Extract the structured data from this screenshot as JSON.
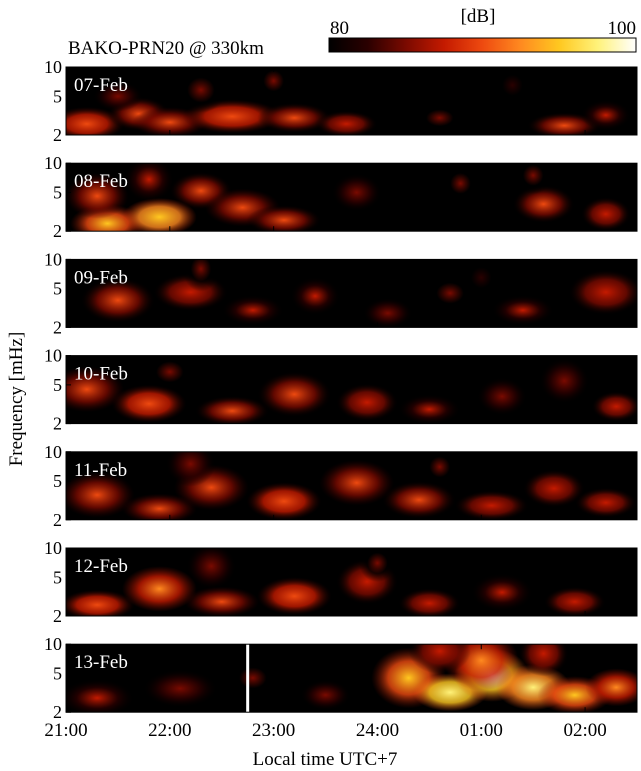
{
  "chart_data": {
    "type": "heatmap",
    "title": "BAKO-PRN20 @ 330km",
    "colorbar": {
      "unit": "[dB]",
      "min": 80,
      "max": 100,
      "min_label": "80",
      "max_label": "100",
      "colormap": [
        "#000000",
        "#2a0000",
        "#7a0a00",
        "#c41a00",
        "#ee4a10",
        "#ff8a20",
        "#ffc820",
        "#fff27a",
        "#ffffff"
      ]
    },
    "xlabel": "Local time UTC+7",
    "ylabel": "Frequency [mHz]",
    "x_ticks": [
      {
        "t": 21.0,
        "label": "21:00"
      },
      {
        "t": 22.0,
        "label": "22:00"
      },
      {
        "t": 23.0,
        "label": "23:00"
      },
      {
        "t": 24.0,
        "label": "24:00"
      },
      {
        "t": 25.0,
        "label": "01:00"
      },
      {
        "t": 26.0,
        "label": "02:00"
      }
    ],
    "xlim": [
      21.0,
      26.5
    ],
    "y_ticks": [
      {
        "f": 2,
        "label": "2"
      },
      {
        "f": 5,
        "label": "5"
      },
      {
        "f": 10,
        "label": "10"
      }
    ],
    "ylim": [
      2,
      10
    ],
    "panels": [
      {
        "label": "07-Feb",
        "blobs": [
          {
            "t": 21.2,
            "f": 2.6,
            "st": 0.3,
            "sf": 0.45,
            "v": 91
          },
          {
            "t": 21.7,
            "f": 3.3,
            "st": 0.25,
            "sf": 0.45,
            "v": 89
          },
          {
            "t": 22.0,
            "f": 2.7,
            "st": 0.3,
            "sf": 0.4,
            "v": 90
          },
          {
            "t": 22.6,
            "f": 3.1,
            "st": 0.4,
            "sf": 0.45,
            "v": 91
          },
          {
            "t": 23.2,
            "f": 3.0,
            "st": 0.3,
            "sf": 0.4,
            "v": 89
          },
          {
            "t": 23.7,
            "f": 2.6,
            "st": 0.25,
            "sf": 0.35,
            "v": 88
          },
          {
            "t": 22.3,
            "f": 5.8,
            "st": 0.2,
            "sf": 0.6,
            "v": 85
          },
          {
            "t": 23.0,
            "f": 7.2,
            "st": 0.15,
            "sf": 0.5,
            "v": 84
          },
          {
            "t": 25.8,
            "f": 2.5,
            "st": 0.3,
            "sf": 0.35,
            "v": 89
          },
          {
            "t": 26.2,
            "f": 3.2,
            "st": 0.2,
            "sf": 0.4,
            "v": 87
          },
          {
            "t": 25.3,
            "f": 6.5,
            "st": 0.15,
            "sf": 0.5,
            "v": 83
          },
          {
            "t": 24.6,
            "f": 3.0,
            "st": 0.2,
            "sf": 0.4,
            "v": 84
          },
          {
            "t": 21.5,
            "f": 5.0,
            "st": 0.2,
            "sf": 0.4,
            "v": 86
          }
        ]
      },
      {
        "label": "08-Feb",
        "blobs": [
          {
            "t": 21.4,
            "f": 2.4,
            "st": 0.3,
            "sf": 0.5,
            "v": 94
          },
          {
            "t": 21.9,
            "f": 2.8,
            "st": 0.3,
            "sf": 0.5,
            "v": 96
          },
          {
            "t": 21.3,
            "f": 4.6,
            "st": 0.25,
            "sf": 0.6,
            "v": 90
          },
          {
            "t": 22.3,
            "f": 5.2,
            "st": 0.25,
            "sf": 0.5,
            "v": 89
          },
          {
            "t": 22.7,
            "f": 3.5,
            "st": 0.3,
            "sf": 0.5,
            "v": 90
          },
          {
            "t": 23.1,
            "f": 2.6,
            "st": 0.3,
            "sf": 0.4,
            "v": 89
          },
          {
            "t": 21.8,
            "f": 6.8,
            "st": 0.2,
            "sf": 0.6,
            "v": 87
          },
          {
            "t": 23.8,
            "f": 5.0,
            "st": 0.2,
            "sf": 0.5,
            "v": 86
          },
          {
            "t": 24.8,
            "f": 6.2,
            "st": 0.15,
            "sf": 0.5,
            "v": 85
          },
          {
            "t": 25.6,
            "f": 3.8,
            "st": 0.25,
            "sf": 0.5,
            "v": 89
          },
          {
            "t": 26.2,
            "f": 3.0,
            "st": 0.2,
            "sf": 0.45,
            "v": 88
          },
          {
            "t": 25.5,
            "f": 7.5,
            "st": 0.15,
            "sf": 0.5,
            "v": 85
          }
        ]
      },
      {
        "label": "09-Feb",
        "blobs": [
          {
            "t": 21.5,
            "f": 3.8,
            "st": 0.3,
            "sf": 0.6,
            "v": 89
          },
          {
            "t": 22.2,
            "f": 4.6,
            "st": 0.3,
            "sf": 0.5,
            "v": 88
          },
          {
            "t": 22.8,
            "f": 3.0,
            "st": 0.25,
            "sf": 0.4,
            "v": 87
          },
          {
            "t": 23.4,
            "f": 4.2,
            "st": 0.2,
            "sf": 0.5,
            "v": 87
          },
          {
            "t": 24.1,
            "f": 2.8,
            "st": 0.2,
            "sf": 0.4,
            "v": 86
          },
          {
            "t": 24.7,
            "f": 4.5,
            "st": 0.2,
            "sf": 0.5,
            "v": 85
          },
          {
            "t": 25.4,
            "f": 3.0,
            "st": 0.25,
            "sf": 0.4,
            "v": 87
          },
          {
            "t": 26.2,
            "f": 4.6,
            "st": 0.3,
            "sf": 0.6,
            "v": 88
          },
          {
            "t": 22.3,
            "f": 8.0,
            "st": 0.15,
            "sf": 0.6,
            "v": 84
          },
          {
            "t": 25.0,
            "f": 6.5,
            "st": 0.15,
            "sf": 0.5,
            "v": 83
          }
        ]
      },
      {
        "label": "10-Feb",
        "blobs": [
          {
            "t": 21.2,
            "f": 4.5,
            "st": 0.3,
            "sf": 0.6,
            "v": 90
          },
          {
            "t": 21.8,
            "f": 3.2,
            "st": 0.3,
            "sf": 0.5,
            "v": 91
          },
          {
            "t": 22.6,
            "f": 2.7,
            "st": 0.3,
            "sf": 0.4,
            "v": 89
          },
          {
            "t": 23.2,
            "f": 4.0,
            "st": 0.3,
            "sf": 0.6,
            "v": 89
          },
          {
            "t": 23.9,
            "f": 3.3,
            "st": 0.25,
            "sf": 0.5,
            "v": 88
          },
          {
            "t": 24.5,
            "f": 2.8,
            "st": 0.25,
            "sf": 0.4,
            "v": 87
          },
          {
            "t": 25.2,
            "f": 3.8,
            "st": 0.2,
            "sf": 0.5,
            "v": 86
          },
          {
            "t": 25.8,
            "f": 5.5,
            "st": 0.2,
            "sf": 0.6,
            "v": 86
          },
          {
            "t": 26.3,
            "f": 3.0,
            "st": 0.2,
            "sf": 0.4,
            "v": 88
          },
          {
            "t": 22.0,
            "f": 6.8,
            "st": 0.2,
            "sf": 0.5,
            "v": 85
          }
        ]
      },
      {
        "label": "11-Feb",
        "blobs": [
          {
            "t": 21.3,
            "f": 3.6,
            "st": 0.3,
            "sf": 0.6,
            "v": 90
          },
          {
            "t": 21.9,
            "f": 2.6,
            "st": 0.3,
            "sf": 0.4,
            "v": 90
          },
          {
            "t": 22.4,
            "f": 4.3,
            "st": 0.3,
            "sf": 0.6,
            "v": 90
          },
          {
            "t": 23.1,
            "f": 3.1,
            "st": 0.3,
            "sf": 0.5,
            "v": 91
          },
          {
            "t": 23.8,
            "f": 4.8,
            "st": 0.3,
            "sf": 0.6,
            "v": 90
          },
          {
            "t": 24.4,
            "f": 3.2,
            "st": 0.3,
            "sf": 0.5,
            "v": 89
          },
          {
            "t": 25.1,
            "f": 2.8,
            "st": 0.3,
            "sf": 0.4,
            "v": 88
          },
          {
            "t": 25.7,
            "f": 4.2,
            "st": 0.25,
            "sf": 0.5,
            "v": 88
          },
          {
            "t": 26.2,
            "f": 3.0,
            "st": 0.25,
            "sf": 0.4,
            "v": 88
          },
          {
            "t": 22.2,
            "f": 7.5,
            "st": 0.2,
            "sf": 0.6,
            "v": 86
          },
          {
            "t": 24.6,
            "f": 7.0,
            "st": 0.15,
            "sf": 0.5,
            "v": 84
          }
        ]
      },
      {
        "label": "12-Feb",
        "blobs": [
          {
            "t": 21.3,
            "f": 2.6,
            "st": 0.3,
            "sf": 0.4,
            "v": 91
          },
          {
            "t": 21.9,
            "f": 3.8,
            "st": 0.3,
            "sf": 0.6,
            "v": 92
          },
          {
            "t": 22.5,
            "f": 2.8,
            "st": 0.3,
            "sf": 0.4,
            "v": 90
          },
          {
            "t": 23.2,
            "f": 3.2,
            "st": 0.3,
            "sf": 0.5,
            "v": 91
          },
          {
            "t": 23.9,
            "f": 4.5,
            "st": 0.25,
            "sf": 0.6,
            "v": 88
          },
          {
            "t": 24.5,
            "f": 2.7,
            "st": 0.25,
            "sf": 0.4,
            "v": 88
          },
          {
            "t": 25.2,
            "f": 3.5,
            "st": 0.25,
            "sf": 0.5,
            "v": 87
          },
          {
            "t": 25.9,
            "f": 2.8,
            "st": 0.25,
            "sf": 0.4,
            "v": 88
          },
          {
            "t": 22.4,
            "f": 6.5,
            "st": 0.2,
            "sf": 0.6,
            "v": 86
          },
          {
            "t": 24.0,
            "f": 7.0,
            "st": 0.15,
            "sf": 0.5,
            "v": 84
          }
        ]
      },
      {
        "label": "13-Feb",
        "marker_t": 22.75,
        "blobs": [
          {
            "t": 21.3,
            "f": 2.8,
            "st": 0.3,
            "sf": 0.5,
            "v": 87
          },
          {
            "t": 22.1,
            "f": 3.5,
            "st": 0.3,
            "sf": 0.5,
            "v": 86
          },
          {
            "t": 22.8,
            "f": 4.5,
            "st": 0.2,
            "sf": 0.5,
            "v": 85
          },
          {
            "t": 23.5,
            "f": 3.0,
            "st": 0.2,
            "sf": 0.4,
            "v": 86
          },
          {
            "t": 24.3,
            "f": 4.5,
            "st": 0.3,
            "sf": 0.8,
            "v": 94
          },
          {
            "t": 24.7,
            "f": 3.2,
            "st": 0.3,
            "sf": 0.5,
            "v": 98
          },
          {
            "t": 25.1,
            "f": 4.8,
            "st": 0.3,
            "sf": 0.7,
            "v": 99
          },
          {
            "t": 25.5,
            "f": 3.6,
            "st": 0.3,
            "sf": 0.6,
            "v": 97
          },
          {
            "t": 25.0,
            "f": 6.8,
            "st": 0.3,
            "sf": 0.8,
            "v": 92
          },
          {
            "t": 25.9,
            "f": 3.0,
            "st": 0.3,
            "sf": 0.5,
            "v": 94
          },
          {
            "t": 26.3,
            "f": 3.6,
            "st": 0.25,
            "sf": 0.5,
            "v": 92
          },
          {
            "t": 24.6,
            "f": 8.5,
            "st": 0.25,
            "sf": 0.6,
            "v": 88
          },
          {
            "t": 25.6,
            "f": 8.0,
            "st": 0.2,
            "sf": 0.6,
            "v": 88
          }
        ]
      }
    ]
  }
}
